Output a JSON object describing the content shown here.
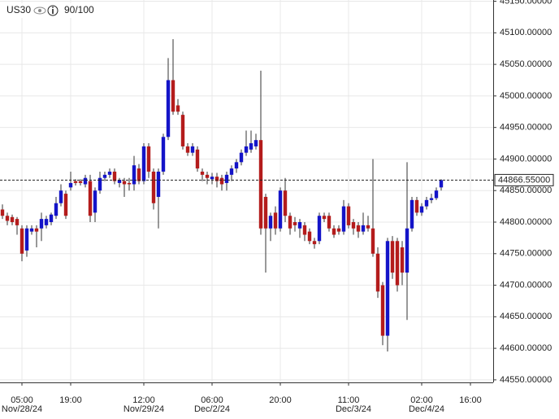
{
  "chart_data": {
    "type": "candlestick",
    "symbol": "US30",
    "rating": "90/100",
    "categories": [
      null,
      null,
      null,
      null,
      "05:00",
      null,
      null,
      null,
      null,
      null,
      null,
      null,
      null,
      null,
      "19:00",
      null,
      null,
      null,
      null,
      null,
      null,
      null,
      null,
      null,
      null,
      null,
      null,
      null,
      null,
      "12:00",
      null,
      null,
      null,
      null,
      null,
      null,
      null,
      null,
      null,
      null,
      null,
      null,
      null,
      "06:00",
      null,
      null,
      null,
      null,
      null,
      null,
      null,
      null,
      null,
      null,
      null,
      null,
      null,
      "20:00",
      null,
      null,
      null,
      null,
      null,
      null,
      null,
      null,
      null,
      null,
      null,
      null,
      null,
      "11:00",
      null,
      null,
      null,
      null,
      null,
      null,
      null,
      null,
      null,
      null,
      null,
      null,
      null,
      null,
      "02:00",
      null,
      null,
      null,
      null,
      null,
      null,
      null,
      null,
      null,
      "16:00",
      null,
      null,
      null,
      null
    ],
    "dates": [
      null,
      null,
      null,
      null,
      "Nov/28/24",
      null,
      null,
      null,
      null,
      null,
      null,
      null,
      null,
      null,
      null,
      null,
      null,
      null,
      null,
      null,
      null,
      null,
      null,
      null,
      null,
      null,
      null,
      null,
      null,
      "Nov/29/24",
      null,
      null,
      null,
      null,
      null,
      null,
      null,
      null,
      null,
      null,
      null,
      null,
      null,
      "Dec/2/24",
      null,
      null,
      null,
      null,
      null,
      null,
      null,
      null,
      null,
      null,
      null,
      null,
      null,
      null,
      null,
      null,
      null,
      null,
      null,
      null,
      null,
      null,
      null,
      null,
      null,
      null,
      null,
      null,
      "Dec/3/24",
      null,
      null,
      null,
      null,
      null,
      null,
      null,
      null,
      null,
      null,
      null,
      null,
      null,
      null,
      "Dec/4/24",
      null,
      null,
      null,
      null,
      null,
      null,
      null,
      null,
      null,
      null,
      null,
      null,
      null,
      null
    ],
    "open": [
      44820,
      44810,
      44808,
      44805,
      44790,
      44755,
      44785,
      44790,
      44790,
      44795,
      44800,
      44810,
      44830,
      44845,
      44855,
      44865,
      44865,
      44860,
      44865,
      44815,
      44850,
      44870,
      44875,
      44880,
      44862,
      44865,
      44862,
      44860,
      44885,
      44865,
      44920,
      44880,
      44840,
      44880,
      44935,
      45025,
      44985,
      44970,
      44920,
      44910,
      44915,
      44880,
      44875,
      44868,
      44872,
      44870,
      44862,
      44875,
      44885,
      44895,
      44910,
      44915,
      44920,
      44930,
      44840,
      44790,
      44815,
      44790,
      44850,
      44810,
      44800,
      44790,
      44795,
      44785,
      44770,
      44770,
      44810,
      44810,
      44790,
      44790,
      44785,
      44825,
      44800,
      44795,
      44785,
      44795,
      44790,
      44750,
      44700,
      44620,
      44770,
      44770,
      44760,
      44720,
      44790,
      44835,
      44815,
      44825,
      44835,
      44838,
      44855,
      null,
      null,
      null,
      null,
      null,
      null,
      null,
      null,
      null,
      null
    ],
    "high": [
      44828,
      44815,
      44812,
      44808,
      44795,
      44795,
      44795,
      44795,
      44815,
      44810,
      44815,
      44840,
      44860,
      44850,
      44880,
      44868,
      44868,
      44875,
      44875,
      44855,
      44880,
      44880,
      44885,
      44885,
      44870,
      44870,
      44870,
      44905,
      44892,
      44925,
      44925,
      44885,
      44885,
      44940,
      45060,
      45090,
      44995,
      44975,
      44925,
      44925,
      44920,
      44885,
      44880,
      44878,
      44878,
      44875,
      44880,
      44890,
      44900,
      44915,
      44945,
      44945,
      44940,
      45040,
      44845,
      44815,
      44825,
      44855,
      44870,
      44815,
      44808,
      44805,
      44800,
      44790,
      44775,
      44815,
      44815,
      44815,
      44795,
      44795,
      44835,
      44830,
      44805,
      44800,
      44815,
      44810,
      44900,
      44760,
      44705,
      44775,
      44778,
      44775,
      44770,
      44895,
      44840,
      44840,
      44830,
      44840,
      44845,
      44855,
      44868,
      null,
      null,
      null,
      null,
      null,
      null,
      null,
      null,
      null,
      null
    ],
    "low": [
      44805,
      44795,
      44795,
      44780,
      44738,
      44745,
      44780,
      44760,
      44770,
      44790,
      44795,
      44805,
      44825,
      44805,
      44850,
      44858,
      44858,
      44855,
      44800,
      44800,
      44845,
      44865,
      44870,
      44860,
      44855,
      44840,
      44850,
      44850,
      44860,
      44860,
      44870,
      44820,
      44790,
      44875,
      44930,
      44970,
      44970,
      44915,
      44905,
      44905,
      44880,
      44865,
      44860,
      44860,
      44855,
      44850,
      44850,
      44865,
      44878,
      44890,
      44905,
      44910,
      44915,
      44780,
      44720,
      44770,
      44780,
      44785,
      44800,
      44780,
      44785,
      44775,
      44770,
      44765,
      44758,
      44765,
      44800,
      44785,
      44775,
      44780,
      44780,
      44790,
      44780,
      44775,
      44780,
      44785,
      44745,
      44680,
      44605,
      44595,
      44710,
      44690,
      44700,
      44645,
      44785,
      44810,
      44810,
      44820,
      44830,
      44835,
      44850,
      null,
      null,
      null,
      null,
      null,
      null,
      null,
      null,
      null,
      null
    ],
    "close": [
      44810,
      44802,
      44800,
      44795,
      44750,
      44790,
      44790,
      44785,
      44805,
      44805,
      44812,
      44830,
      44850,
      44810,
      44862,
      44862,
      44862,
      44870,
      44810,
      44850,
      44870,
      44875,
      44880,
      44865,
      44867,
      44860,
      44860,
      44890,
      44865,
      44920,
      44880,
      44830,
      44880,
      44935,
      45025,
      44975,
      44975,
      44920,
      44910,
      44920,
      44885,
      44875,
      44870,
      44872,
      44865,
      44860,
      44875,
      44885,
      44895,
      44910,
      44920,
      44925,
      44930,
      44790,
      44790,
      44810,
      44790,
      44850,
      44810,
      44790,
      44795,
      44800,
      44780,
      44770,
      44765,
      44810,
      44805,
      44790,
      44780,
      44785,
      44825,
      44795,
      44790,
      44785,
      44795,
      44790,
      44750,
      44690,
      44620,
      44770,
      44720,
      44700,
      44720,
      44790,
      44835,
      44815,
      44825,
      44835,
      44838,
      44850,
      44866.55,
      null,
      null,
      null,
      null,
      null,
      null,
      null,
      null,
      null,
      null
    ],
    "up_color": "#1414c8",
    "down_color": "#b41c1c",
    "wick_color": "#333333",
    "price_line": {
      "value": 44866.55,
      "label": "44866.55000"
    },
    "ylim": [
      44546,
      45152
    ],
    "yticks": [
      {
        "value": 44550,
        "label": "44550.00000"
      },
      {
        "value": 44600,
        "label": "44600.00000"
      },
      {
        "value": 44650,
        "label": "44650.00000"
      },
      {
        "value": 44700,
        "label": "44700.00000"
      },
      {
        "value": 44750,
        "label": "44750.00000"
      },
      {
        "value": 44800,
        "label": "44800.00000"
      },
      {
        "value": 44850,
        "label": "44850.00000"
      },
      {
        "value": 44900,
        "label": "44900.00000"
      },
      {
        "value": 44950,
        "label": "44950.00000"
      },
      {
        "value": 45000,
        "label": "45000.00000"
      },
      {
        "value": 45050,
        "label": "45050.00000"
      },
      {
        "value": 45100,
        "label": "45100.00000"
      },
      {
        "value": 45150,
        "label": "45150.00000"
      }
    ],
    "grid": true
  }
}
